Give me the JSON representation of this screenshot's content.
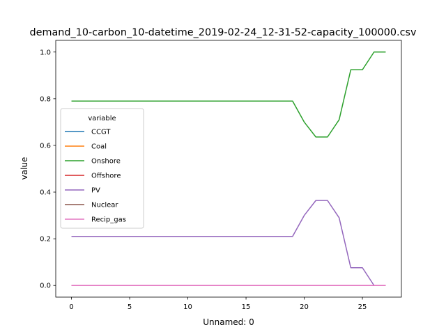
{
  "chart_data": {
    "type": "line",
    "title": "demand_10-carbon_10-datetime_2019-02-24_12-31-52-capacity_100000.csv",
    "xlabel": "Unnamed: 0",
    "ylabel": "value",
    "xlim": [
      -1.35,
      28.35
    ],
    "ylim": [
      -0.05,
      1.05
    ],
    "xticks": [
      0,
      5,
      10,
      15,
      20,
      25
    ],
    "xtick_labels": [
      "0",
      "5",
      "10",
      "15",
      "20",
      "25"
    ],
    "yticks": [
      0.0,
      0.2,
      0.4,
      0.6,
      0.8,
      1.0
    ],
    "ytick_labels": [
      "0.0",
      "0.2",
      "0.4",
      "0.6",
      "0.8",
      "1.0"
    ],
    "grid": false,
    "legend": {
      "title": "variable",
      "placement": "center-left"
    },
    "x": [
      0,
      1,
      2,
      3,
      4,
      5,
      6,
      7,
      8,
      9,
      10,
      11,
      12,
      13,
      14,
      15,
      16,
      17,
      18,
      19,
      20,
      21,
      22,
      23,
      24,
      25,
      26,
      27
    ],
    "series": [
      {
        "name": "CCGT",
        "color": "#1f77b4",
        "values": [
          0,
          0,
          0,
          0,
          0,
          0,
          0,
          0,
          0,
          0,
          0,
          0,
          0,
          0,
          0,
          0,
          0,
          0,
          0,
          0,
          0,
          0,
          0,
          0,
          0,
          0,
          0,
          0
        ]
      },
      {
        "name": "Coal",
        "color": "#ff7f0e",
        "values": [
          0,
          0,
          0,
          0,
          0,
          0,
          0,
          0,
          0,
          0,
          0,
          0,
          0,
          0,
          0,
          0,
          0,
          0,
          0,
          0,
          0,
          0,
          0,
          0,
          0,
          0,
          0,
          0
        ]
      },
      {
        "name": "Onshore",
        "color": "#2ca02c",
        "values": [
          0.79,
          0.79,
          0.79,
          0.79,
          0.79,
          0.79,
          0.79,
          0.79,
          0.79,
          0.79,
          0.79,
          0.79,
          0.79,
          0.79,
          0.79,
          0.79,
          0.79,
          0.79,
          0.79,
          0.79,
          0.7,
          0.636,
          0.636,
          0.71,
          0.924,
          0.924,
          1.0,
          1.0
        ]
      },
      {
        "name": "Offshore",
        "color": "#d62728",
        "values": [
          0,
          0,
          0,
          0,
          0,
          0,
          0,
          0,
          0,
          0,
          0,
          0,
          0,
          0,
          0,
          0,
          0,
          0,
          0,
          0,
          0,
          0,
          0,
          0,
          0,
          0,
          0,
          0
        ]
      },
      {
        "name": "PV",
        "color": "#9467bd",
        "values": [
          0.21,
          0.21,
          0.21,
          0.21,
          0.21,
          0.21,
          0.21,
          0.21,
          0.21,
          0.21,
          0.21,
          0.21,
          0.21,
          0.21,
          0.21,
          0.21,
          0.21,
          0.21,
          0.21,
          0.21,
          0.3,
          0.364,
          0.364,
          0.29,
          0.076,
          0.076,
          0.0,
          0.0
        ]
      },
      {
        "name": "Nuclear",
        "color": "#8c564b",
        "values": [
          0,
          0,
          0,
          0,
          0,
          0,
          0,
          0,
          0,
          0,
          0,
          0,
          0,
          0,
          0,
          0,
          0,
          0,
          0,
          0,
          0,
          0,
          0,
          0,
          0,
          0,
          0,
          0
        ]
      },
      {
        "name": "Recip_gas",
        "color": "#e377c2",
        "values": [
          0,
          0,
          0,
          0,
          0,
          0,
          0,
          0,
          0,
          0,
          0,
          0,
          0,
          0,
          0,
          0,
          0,
          0,
          0,
          0,
          0,
          0,
          0,
          0,
          0,
          0,
          0,
          0
        ]
      }
    ]
  }
}
